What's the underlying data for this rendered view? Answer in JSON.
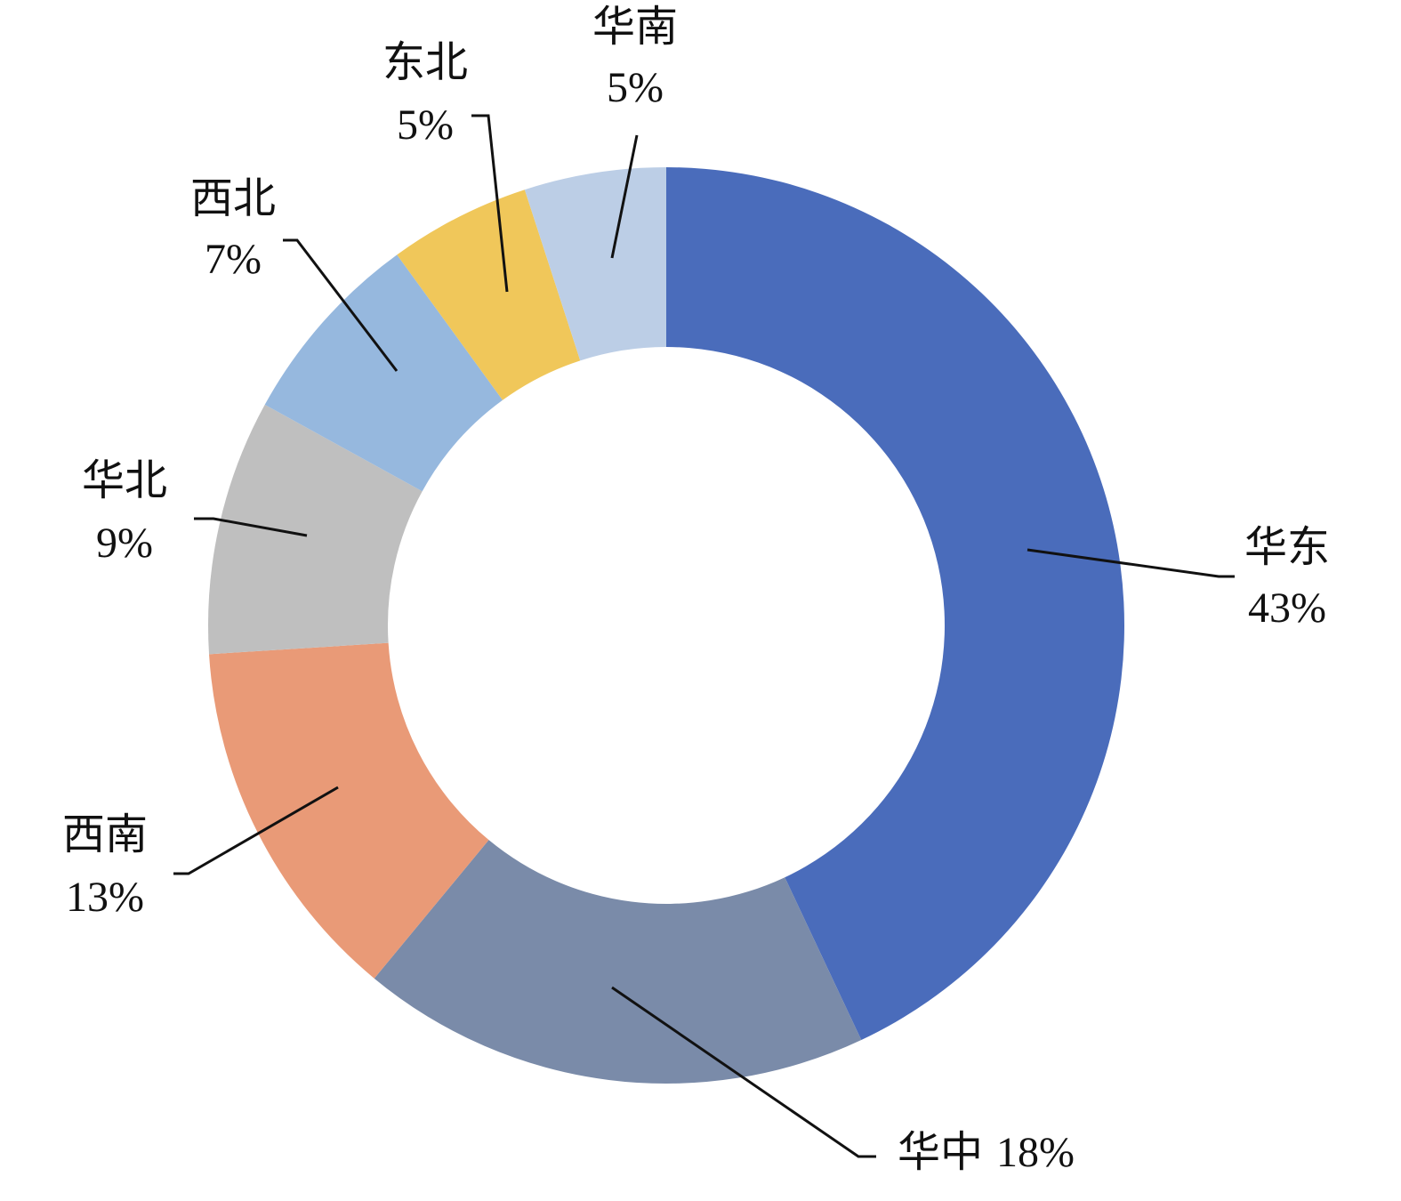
{
  "chart_data": {
    "type": "donut",
    "categories": [
      "华东",
      "华中",
      "西南",
      "华北",
      "西北",
      "东北",
      "华南"
    ],
    "values": [
      43,
      18,
      13,
      9,
      7,
      5,
      5
    ],
    "value_labels": [
      "43%",
      "18%",
      "13%",
      "9%",
      "7%",
      "5%",
      "5%"
    ],
    "colors": [
      "#4a6cbb",
      "#7a8ba9",
      "#e99a77",
      "#bfbfbf",
      "#96b8de",
      "#f0c75a",
      "#bccee6"
    ]
  }
}
